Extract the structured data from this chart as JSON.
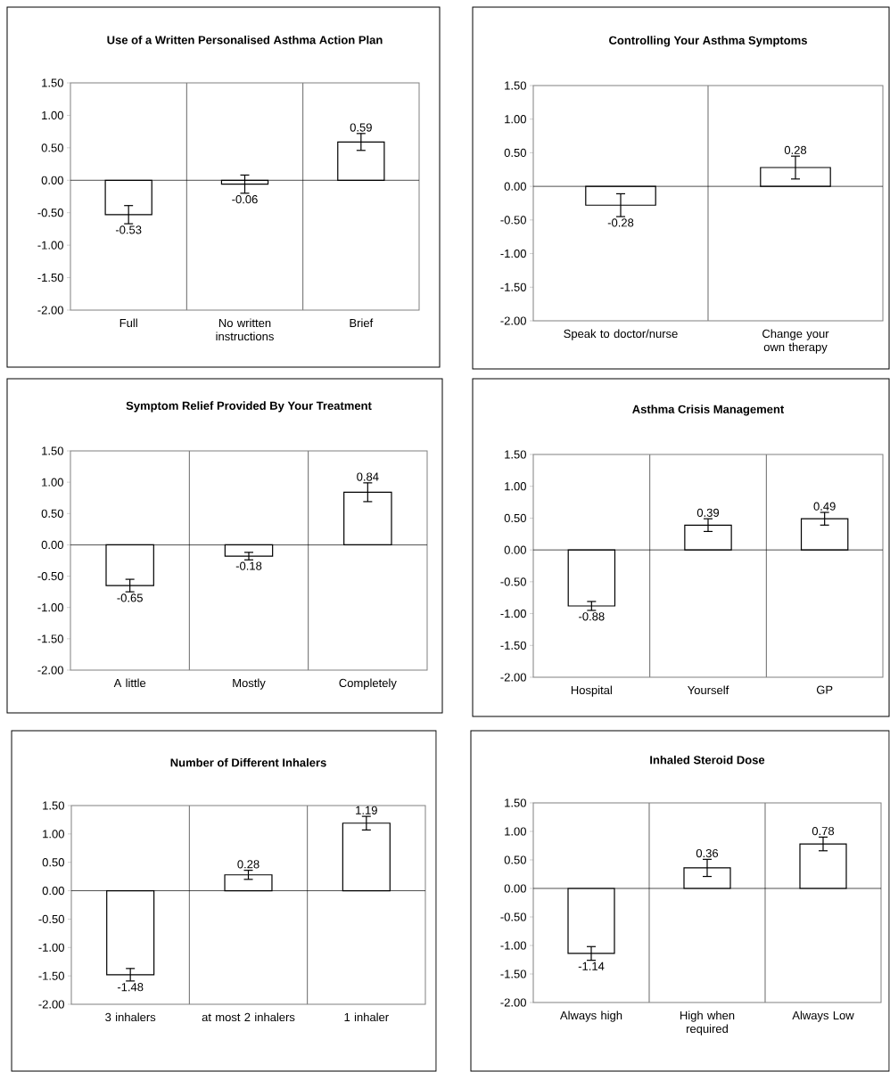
{
  "chart_data": [
    {
      "type": "bar",
      "title": "Use of a Written Personalised  Asthma Action Plan",
      "categories": [
        "Full",
        "No written instructions",
        "Brief"
      ],
      "values": [
        -0.53,
        -0.06,
        0.59
      ],
      "ref_lines": [
        {
          "axis": "y",
          "value": 0,
          "color": "#000000"
        }
      ],
      "errors": [
        0.14,
        0.14,
        0.13
      ],
      "value_labels": [
        "-0.53",
        "-0.06",
        "0.59"
      ],
      "color": "#ffffff",
      "ylim": [
        -2,
        1.5
      ],
      "yticks": [
        {
          "value": -2,
          "label": "-2.00"
        },
        {
          "value": -1.5,
          "label": "-1.50"
        },
        {
          "value": -1,
          "label": "-1.00"
        },
        {
          "value": -0.5,
          "label": "-0.50"
        },
        {
          "value": 0,
          "label": "0.00"
        },
        {
          "value": 0.5,
          "label": "0.50"
        },
        {
          "value": 1,
          "label": "1.00"
        },
        {
          "value": 1.5,
          "label": "1.50"
        }
      ],
      "grid": "x"
    },
    {
      "type": "bar",
      "title": "Controlling Your Asthma Symptoms",
      "categories": [
        "Speak to doctor/nurse",
        "Change your own therapy"
      ],
      "values": [
        -0.28,
        0.28
      ],
      "ref_lines": [
        {
          "axis": "y",
          "value": 0,
          "color": "#000000"
        }
      ],
      "errors": [
        0.17,
        0.17
      ],
      "value_labels": [
        "-0.28",
        "0.28"
      ],
      "color": "#ffffff",
      "ylim": [
        -2,
        1.5
      ],
      "yticks": [
        {
          "value": -2,
          "label": "-2.00"
        },
        {
          "value": -1.5,
          "label": "-1.50"
        },
        {
          "value": -1,
          "label": "-1.00"
        },
        {
          "value": -0.5,
          "label": "-0.50"
        },
        {
          "value": 0,
          "label": "0.00"
        },
        {
          "value": 0.5,
          "label": "0.50"
        },
        {
          "value": 1,
          "label": "1.00"
        },
        {
          "value": 1.5,
          "label": "1.50"
        }
      ],
      "grid": "x"
    },
    {
      "type": "bar",
      "title": "Symptom Relief Provided By Your Treatment",
      "categories": [
        "A little",
        "Mostly",
        "Completely"
      ],
      "values": [
        -0.65,
        -0.18,
        0.84
      ],
      "ref_lines": [
        {
          "axis": "y",
          "value": 0,
          "color": "#000000"
        }
      ],
      "errors": [
        0.1,
        0.06,
        0.15
      ],
      "value_labels": [
        "-0.65",
        "-0.18",
        "0.84"
      ],
      "color": "#ffffff",
      "ylim": [
        -2,
        1.5
      ],
      "yticks": [
        {
          "value": -2,
          "label": "-2.00"
        },
        {
          "value": -1.5,
          "label": "-1.50"
        },
        {
          "value": -1,
          "label": "-1.00"
        },
        {
          "value": -0.5,
          "label": "-0.50"
        },
        {
          "value": 0,
          "label": "0.00"
        },
        {
          "value": 0.5,
          "label": "0.50"
        },
        {
          "value": 1,
          "label": "1.00"
        },
        {
          "value": 1.5,
          "label": "1.50"
        }
      ],
      "grid": "x"
    },
    {
      "type": "bar",
      "title": "Asthma Crisis Management",
      "categories": [
        "Hospital",
        "Yourself",
        "GP"
      ],
      "values": [
        -0.88,
        0.39,
        0.49
      ],
      "ref_lines": [
        {
          "axis": "y",
          "value": 0,
          "color": "#000000"
        }
      ],
      "errors": [
        0.07,
        0.1,
        0.1
      ],
      "value_labels": [
        "-0.88",
        "0.39",
        "0.49"
      ],
      "color": "#ffffff",
      "ylim": [
        -2,
        1.5
      ],
      "yticks": [
        {
          "value": -2,
          "label": "-2.00"
        },
        {
          "value": -1.5,
          "label": "-1.50"
        },
        {
          "value": -1,
          "label": "-1.00"
        },
        {
          "value": -0.5,
          "label": "-0.50"
        },
        {
          "value": 0,
          "label": "0.00"
        },
        {
          "value": 0.5,
          "label": "0.50"
        },
        {
          "value": 1,
          "label": "1.00"
        },
        {
          "value": 1.5,
          "label": "1.50"
        }
      ],
      "grid": "x"
    },
    {
      "type": "bar",
      "title": "Number of Different Inhalers",
      "categories": [
        "3 inhalers",
        "at most 2 inhalers",
        "1 inhaler"
      ],
      "values": [
        -1.48,
        0.28,
        1.19
      ],
      "ref_lines": [
        {
          "axis": "y",
          "value": 0,
          "color": "#000000"
        }
      ],
      "errors": [
        0.11,
        0.08,
        0.12
      ],
      "value_labels": [
        "-1.48",
        "0.28",
        "1.19"
      ],
      "color": "#ffffff",
      "ylim": [
        -2,
        1.5
      ],
      "yticks": [
        {
          "value": -2,
          "label": "-2.00"
        },
        {
          "value": -1.5,
          "label": "-1.50"
        },
        {
          "value": -1,
          "label": "-1.00"
        },
        {
          "value": -0.5,
          "label": "-0.50"
        },
        {
          "value": 0,
          "label": "0.00"
        },
        {
          "value": 0.5,
          "label": "0.50"
        },
        {
          "value": 1,
          "label": "1.00"
        },
        {
          "value": 1.5,
          "label": "1.50"
        }
      ],
      "grid": "x"
    },
    {
      "type": "bar",
      "title": "Inhaled Steroid Dose",
      "categories": [
        "Always high",
        "High when required",
        "Always Low"
      ],
      "values": [
        -1.14,
        0.36,
        0.78
      ],
      "ref_lines": [
        {
          "axis": "y",
          "value": 0,
          "color": "#000000"
        }
      ],
      "errors": [
        0.12,
        0.15,
        0.12
      ],
      "value_labels": [
        "-1.14",
        "0.36",
        "0.78"
      ],
      "color": "#ffffff",
      "ylim": [
        -2,
        1.5
      ],
      "yticks": [
        {
          "value": -2,
          "label": "-2.00"
        },
        {
          "value": -1.5,
          "label": "-1.50"
        },
        {
          "value": -1,
          "label": "-1.00"
        },
        {
          "value": -0.5,
          "label": "-0.50"
        },
        {
          "value": 0,
          "label": "0.00"
        },
        {
          "value": 0.5,
          "label": "0.50"
        },
        {
          "value": 1,
          "label": "1.00"
        },
        {
          "value": 1.5,
          "label": "1.50"
        }
      ],
      "grid": "x"
    }
  ]
}
